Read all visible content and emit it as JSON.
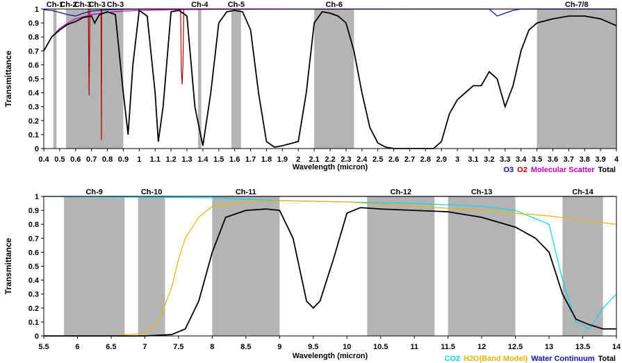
{
  "chart_data": [
    {
      "type": "line",
      "ylabel": "Transmittance",
      "xlabel": "Wavelength (micron)",
      "xlim": [
        0.4,
        4.0
      ],
      "ylim": [
        0,
        1
      ],
      "x_ticks": [
        "0.4",
        "0.5",
        "0.6",
        "0.7",
        "0.8",
        "0.9",
        "1",
        "1.1",
        "1.2",
        "1.3",
        "1.4",
        "1.5",
        "1.6",
        "1.7",
        "1.8",
        "1.9",
        "2",
        "2.1",
        "2.2",
        "2.3",
        "2.4",
        "2.5",
        "2.6",
        "2.7",
        "2.8",
        "2.9",
        "3",
        "3.1",
        "3.2",
        "3.3",
        "3.4",
        "3.5",
        "3.6",
        "3.7",
        "3.8",
        "3.9",
        "4"
      ],
      "y_ticks": [
        "0",
        "0.1",
        "0.2",
        "0.3",
        "0.4",
        "0.5",
        "0.6",
        "0.7",
        "0.8",
        "0.9",
        "1"
      ],
      "legend": [
        {
          "label": "O3",
          "color": "#1010a0"
        },
        {
          "label": "O2",
          "color": "#b00000"
        },
        {
          "label": "Molecular Scatter",
          "color": "#c000c0"
        },
        {
          "label": "Total",
          "color": "#000000"
        }
      ],
      "channels": [
        {
          "label": "Ch-1",
          "range": [
            0.46,
            0.48
          ]
        },
        {
          "label": "Ch-2",
          "range": [
            0.545,
            0.565
          ]
        },
        {
          "label": "Ch-3",
          "range": [
            0.62,
            0.67
          ]
        },
        {
          "label": "Ch-3",
          "range": [
            0.72,
            0.75
          ]
        },
        {
          "label": "Ch-3",
          "range": [
            0.83,
            0.87
          ]
        },
        {
          "label": "Ch-4",
          "range": [
            1.37,
            1.39
          ]
        },
        {
          "label": "Ch-5",
          "range": [
            1.58,
            1.64
          ]
        },
        {
          "label": "Ch-6",
          "range": [
            2.1,
            2.35
          ]
        },
        {
          "label": "Ch-7/8",
          "range": [
            3.5,
            4.0
          ]
        }
      ],
      "channel_bands": [
        [
          0.46,
          0.48
        ],
        [
          0.54,
          0.9
        ],
        [
          1.37,
          1.39
        ],
        [
          1.58,
          1.64
        ],
        [
          2.1,
          2.35
        ],
        [
          3.5,
          4.0
        ]
      ],
      "series": [
        {
          "name": "Total",
          "color": "#000000",
          "x": [
            0.4,
            0.45,
            0.5,
            0.55,
            0.6,
            0.65,
            0.7,
            0.72,
            0.75,
            0.8,
            0.85,
            0.9,
            0.93,
            0.96,
            1.0,
            1.05,
            1.1,
            1.12,
            1.15,
            1.2,
            1.25,
            1.3,
            1.35,
            1.4,
            1.45,
            1.5,
            1.55,
            1.6,
            1.65,
            1.7,
            1.75,
            1.8,
            1.85,
            1.9,
            2.0,
            2.05,
            2.1,
            2.15,
            2.2,
            2.25,
            2.3,
            2.35,
            2.4,
            2.45,
            2.5,
            2.55,
            2.6,
            2.7,
            2.8,
            2.85,
            2.9,
            2.95,
            3.0,
            3.05,
            3.1,
            3.15,
            3.2,
            3.25,
            3.3,
            3.35,
            3.4,
            3.45,
            3.5,
            3.6,
            3.7,
            3.8,
            3.9,
            4.0
          ],
          "y": [
            0.7,
            0.8,
            0.85,
            0.89,
            0.91,
            0.94,
            0.95,
            0.9,
            0.96,
            0.98,
            0.96,
            0.4,
            0.1,
            0.6,
            0.99,
            0.95,
            0.4,
            0.05,
            0.3,
            0.98,
            0.99,
            0.95,
            0.3,
            0.02,
            0.4,
            0.9,
            0.98,
            0.99,
            0.98,
            0.85,
            0.4,
            0.05,
            0.01,
            0.02,
            0.05,
            0.4,
            0.9,
            0.98,
            0.97,
            0.95,
            0.9,
            0.7,
            0.4,
            0.15,
            0.04,
            0.01,
            0.0,
            0.0,
            0.0,
            0.0,
            0.05,
            0.25,
            0.35,
            0.4,
            0.45,
            0.45,
            0.55,
            0.5,
            0.3,
            0.45,
            0.7,
            0.85,
            0.9,
            0.93,
            0.95,
            0.95,
            0.93,
            0.88
          ]
        },
        {
          "name": "Molecular Scatter",
          "color": "#c000c0",
          "x": [
            0.4,
            0.45,
            0.5,
            0.55,
            0.6,
            0.7,
            0.8,
            0.9,
            1.0,
            1.2,
            1.5,
            2.0,
            3.0,
            4.0
          ],
          "y": [
            0.7,
            0.8,
            0.86,
            0.9,
            0.93,
            0.96,
            0.975,
            0.985,
            0.99,
            0.995,
            0.998,
            0.999,
            1.0,
            1.0
          ]
        },
        {
          "name": "O3",
          "color": "#1010a0",
          "x": [
            0.4,
            0.45,
            0.5,
            0.55,
            0.6,
            0.65,
            0.7,
            0.8,
            1.0,
            3.2,
            3.25,
            3.3,
            3.35,
            3.4,
            4.0
          ],
          "y": [
            0.995,
            0.99,
            0.975,
            0.96,
            0.95,
            0.97,
            0.985,
            0.995,
            1.0,
            1.0,
            0.95,
            0.97,
            0.99,
            1.0,
            1.0
          ]
        },
        {
          "name": "O2",
          "color": "#b00000",
          "x": [
            0.68,
            0.685,
            0.69,
            0.76,
            0.762,
            0.764,
            1.26,
            1.265,
            1.27,
            1.275,
            1.28
          ],
          "y": [
            1.0,
            0.38,
            1.0,
            1.0,
            0.06,
            1.0,
            1.0,
            0.55,
            0.46,
            0.6,
            1.0
          ]
        }
      ]
    },
    {
      "type": "line",
      "ylabel": "Transmittance",
      "xlabel": "Wavelength (micron)",
      "xlim": [
        5.5,
        14.0
      ],
      "ylim": [
        0,
        1
      ],
      "x_ticks": [
        "5.5",
        "6",
        "6.5",
        "7",
        "7.5",
        "8",
        "8.5",
        "9",
        "9.5",
        "10",
        "10.5",
        "11",
        "11.5",
        "12",
        "12.5",
        "13",
        "13.5",
        "14"
      ],
      "y_ticks": [
        "0",
        "0.1",
        "0.2",
        "0.3",
        "0.4",
        "0.5",
        "0.6",
        "0.7",
        "0.8",
        "0.9",
        "1"
      ],
      "legend": [
        {
          "label": "CO2",
          "color": "#00d8f0"
        },
        {
          "label": "H2O(Band Model)",
          "color": "#f0b000"
        },
        {
          "label": "Water Continuum",
          "color": "#1010a0"
        },
        {
          "label": "Total",
          "color": "#000000"
        }
      ],
      "channels": [
        {
          "label": "Ch-9",
          "range": [
            5.8,
            6.7
          ]
        },
        {
          "label": "Ch-10",
          "range": [
            6.9,
            7.3
          ]
        },
        {
          "label": "Ch-11",
          "range": [
            8.0,
            9.0
          ]
        },
        {
          "label": "Ch-12",
          "range": [
            10.3,
            11.3
          ]
        },
        {
          "label": "Ch-13",
          "range": [
            11.5,
            12.5
          ]
        },
        {
          "label": "Ch-14",
          "range": [
            13.2,
            13.8
          ]
        }
      ],
      "channel_bands": [
        [
          5.8,
          6.7
        ],
        [
          6.9,
          7.3
        ],
        [
          8.0,
          9.0
        ],
        [
          10.3,
          11.3
        ],
        [
          11.5,
          12.5
        ],
        [
          13.2,
          13.8
        ]
      ],
      "series": [
        {
          "name": "Total",
          "color": "#000000",
          "x": [
            5.5,
            7.0,
            7.4,
            7.6,
            7.8,
            8.0,
            8.2,
            8.5,
            8.8,
            9.0,
            9.2,
            9.4,
            9.5,
            9.6,
            9.8,
            10.0,
            10.2,
            10.5,
            11.0,
            11.5,
            12.0,
            12.5,
            12.8,
            13.0,
            13.2,
            13.4,
            13.6,
            13.8,
            14.0
          ],
          "y": [
            0.0,
            0.0,
            0.01,
            0.05,
            0.25,
            0.6,
            0.85,
            0.9,
            0.91,
            0.9,
            0.7,
            0.25,
            0.2,
            0.25,
            0.55,
            0.88,
            0.92,
            0.91,
            0.9,
            0.89,
            0.85,
            0.78,
            0.7,
            0.6,
            0.3,
            0.12,
            0.08,
            0.05,
            0.05
          ]
        },
        {
          "name": "H2O(Band Model)",
          "color": "#f0b000",
          "x": [
            5.5,
            6.5,
            7.0,
            7.2,
            7.4,
            7.5,
            7.6,
            7.8,
            8.0,
            8.5,
            9.0,
            10.0,
            11.0,
            12.0,
            12.5,
            13.0,
            13.5,
            14.0
          ],
          "y": [
            0.0,
            0.0,
            0.02,
            0.1,
            0.35,
            0.55,
            0.7,
            0.85,
            0.93,
            0.96,
            0.97,
            0.96,
            0.93,
            0.9,
            0.88,
            0.86,
            0.83,
            0.8
          ]
        },
        {
          "name": "CO2",
          "color": "#00d8f0",
          "x": [
            5.5,
            8.0,
            9.0,
            10.0,
            11.0,
            12.0,
            12.5,
            13.0,
            13.2,
            13.4,
            13.6,
            13.8,
            14.0
          ],
          "y": [
            1.0,
            0.99,
            0.97,
            0.96,
            0.95,
            0.93,
            0.9,
            0.8,
            0.4,
            0.1,
            0.05,
            0.2,
            0.3
          ]
        },
        {
          "name": "Water Continuum",
          "color": "#1010a0",
          "x": [
            5.5,
            14.0
          ],
          "y": [
            1.0,
            1.0
          ]
        }
      ]
    }
  ]
}
